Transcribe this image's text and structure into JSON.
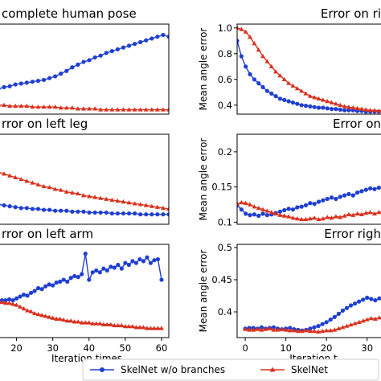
{
  "colors": {
    "wo_branches": "#1f3fd1",
    "skelnet": "#d9321f"
  },
  "legend": {
    "wo_branches_label": "SkelNet w/o branches",
    "skelnet_label": "SkelNet"
  },
  "chart_data": [
    {
      "type": "line",
      "title": "complete human pose",
      "xlim": [
        0,
        60
      ],
      "ylim": [
        0,
        1
      ],
      "xticks": [],
      "yticks": [],
      "series": [
        {
          "name": "SkelNet w/o branches",
          "x": [
            0,
            2,
            4,
            6,
            8,
            10,
            12,
            14,
            16,
            18,
            20,
            22,
            24,
            26,
            28,
            30,
            32,
            34,
            36,
            38,
            40,
            42,
            44,
            46,
            48,
            50,
            52,
            54,
            56,
            58,
            60
          ],
          "values": [
            0.28,
            0.3,
            0.31,
            0.33,
            0.34,
            0.35,
            0.36,
            0.37,
            0.38,
            0.4,
            0.42,
            0.45,
            0.48,
            0.52,
            0.55,
            0.58,
            0.6,
            0.63,
            0.65,
            0.68,
            0.7,
            0.72,
            0.74,
            0.76,
            0.78,
            0.8,
            0.82,
            0.84,
            0.86,
            0.88,
            0.86
          ]
        },
        {
          "name": "SkelNet",
          "x": [
            0,
            2,
            4,
            6,
            8,
            10,
            12,
            14,
            16,
            18,
            20,
            22,
            24,
            26,
            28,
            30,
            32,
            34,
            36,
            38,
            40,
            42,
            44,
            46,
            48,
            50,
            52,
            54,
            56,
            58,
            60
          ],
          "values": [
            0.1,
            0.1,
            0.09,
            0.09,
            0.09,
            0.09,
            0.08,
            0.08,
            0.08,
            0.08,
            0.08,
            0.07,
            0.07,
            0.07,
            0.06,
            0.06,
            0.06,
            0.06,
            0.05,
            0.05,
            0.05,
            0.05,
            0.05,
            0.05,
            0.05,
            0.05,
            0.05,
            0.05,
            0.05,
            0.05,
            0.05
          ]
        }
      ]
    },
    {
      "type": "line",
      "title": "Error on ri",
      "ylabel": "Mean angle error",
      "xlim": [
        0,
        35
      ],
      "ylim": [
        0.33,
        1.03
      ],
      "xticks": [],
      "yticks": [
        0.4,
        0.6,
        0.8,
        1.0
      ],
      "series": [
        {
          "name": "SkelNet w/o branches",
          "x": [
            0,
            1,
            2,
            3,
            4,
            5,
            6,
            7,
            8,
            9,
            10,
            11,
            12,
            13,
            14,
            15,
            16,
            17,
            18,
            19,
            20,
            21,
            22,
            23,
            24,
            25,
            26,
            27,
            28,
            29,
            30,
            31,
            32,
            33,
            34,
            35
          ],
          "values": [
            0.9,
            0.78,
            0.7,
            0.64,
            0.6,
            0.57,
            0.54,
            0.51,
            0.49,
            0.47,
            0.45,
            0.44,
            0.43,
            0.42,
            0.41,
            0.4,
            0.395,
            0.39,
            0.385,
            0.38,
            0.38,
            0.375,
            0.37,
            0.37,
            0.365,
            0.36,
            0.36,
            0.36,
            0.355,
            0.355,
            0.35,
            0.35,
            0.35,
            0.35,
            0.35,
            0.35
          ]
        },
        {
          "name": "SkelNet",
          "x": [
            0,
            1,
            2,
            3,
            4,
            5,
            6,
            7,
            8,
            9,
            10,
            11,
            12,
            13,
            14,
            15,
            16,
            17,
            18,
            19,
            20,
            21,
            22,
            23,
            24,
            25,
            26,
            27,
            28,
            29,
            30,
            31,
            32,
            33,
            34,
            35
          ],
          "values": [
            1.0,
            0.99,
            0.97,
            0.93,
            0.88,
            0.83,
            0.78,
            0.74,
            0.7,
            0.66,
            0.63,
            0.6,
            0.57,
            0.55,
            0.53,
            0.51,
            0.49,
            0.47,
            0.46,
            0.45,
            0.44,
            0.43,
            0.42,
            0.41,
            0.4,
            0.39,
            0.385,
            0.38,
            0.375,
            0.37,
            0.365,
            0.36,
            0.36,
            0.355,
            0.355,
            0.35
          ]
        }
      ]
    },
    {
      "type": "line",
      "title": "rror on left leg",
      "xlim": [
        0,
        60
      ],
      "ylim": [
        0,
        1
      ],
      "xticks": [],
      "yticks": [],
      "series": [
        {
          "name": "SkelNet w/o branches",
          "x": [
            0,
            2,
            4,
            6,
            8,
            10,
            12,
            14,
            16,
            18,
            20,
            22,
            24,
            26,
            28,
            30,
            32,
            34,
            36,
            38,
            40,
            42,
            44,
            46,
            48,
            50,
            52,
            54,
            56,
            58,
            60
          ],
          "values": [
            0.22,
            0.21,
            0.2,
            0.19,
            0.18,
            0.18,
            0.17,
            0.17,
            0.16,
            0.16,
            0.15,
            0.15,
            0.15,
            0.14,
            0.14,
            0.14,
            0.13,
            0.13,
            0.13,
            0.13,
            0.12,
            0.12,
            0.12,
            0.12,
            0.12,
            0.11,
            0.11,
            0.11,
            0.11,
            0.11,
            0.11
          ]
        },
        {
          "name": "SkelNet",
          "x": [
            0,
            2,
            4,
            6,
            8,
            10,
            12,
            14,
            16,
            18,
            20,
            22,
            24,
            26,
            28,
            30,
            32,
            34,
            36,
            38,
            40,
            42,
            44,
            46,
            48,
            50,
            52,
            54,
            56,
            58,
            60
          ],
          "values": [
            0.58,
            0.56,
            0.54,
            0.52,
            0.5,
            0.48,
            0.46,
            0.44,
            0.42,
            0.41,
            0.39,
            0.38,
            0.36,
            0.35,
            0.34,
            0.32,
            0.31,
            0.3,
            0.29,
            0.28,
            0.27,
            0.26,
            0.25,
            0.24,
            0.23,
            0.22,
            0.21,
            0.2,
            0.19,
            0.18,
            0.17
          ]
        }
      ]
    },
    {
      "type": "line",
      "title": "Error on",
      "ylabel": "Mean angle error",
      "xlim": [
        0,
        35
      ],
      "ylim": [
        0.097,
        0.225
      ],
      "xticks": [],
      "yticks": [
        0.1,
        0.15,
        0.2
      ],
      "series": [
        {
          "name": "SkelNet w/o branches",
          "x": [
            0,
            1,
            2,
            3,
            4,
            5,
            6,
            7,
            8,
            9,
            10,
            11,
            12,
            13,
            14,
            15,
            16,
            17,
            18,
            19,
            20,
            21,
            22,
            23,
            24,
            25,
            26,
            27,
            28,
            29,
            30,
            31,
            32,
            33,
            34,
            35
          ],
          "values": [
            0.124,
            0.118,
            0.112,
            0.11,
            0.111,
            0.109,
            0.112,
            0.11,
            0.111,
            0.113,
            0.115,
            0.117,
            0.119,
            0.118,
            0.121,
            0.122,
            0.124,
            0.127,
            0.126,
            0.129,
            0.131,
            0.133,
            0.135,
            0.133,
            0.136,
            0.138,
            0.14,
            0.138,
            0.142,
            0.144,
            0.146,
            0.148,
            0.147,
            0.149,
            0.148,
            0.149
          ]
        },
        {
          "name": "SkelNet",
          "x": [
            0,
            1,
            2,
            3,
            4,
            5,
            6,
            7,
            8,
            9,
            10,
            11,
            12,
            13,
            14,
            15,
            16,
            17,
            18,
            19,
            20,
            21,
            22,
            23,
            24,
            25,
            26,
            27,
            28,
            29,
            30,
            31,
            32,
            33,
            34,
            35
          ],
          "values": [
            0.126,
            0.128,
            0.127,
            0.125,
            0.122,
            0.12,
            0.118,
            0.116,
            0.114,
            0.112,
            0.11,
            0.109,
            0.108,
            0.106,
            0.105,
            0.104,
            0.104,
            0.105,
            0.106,
            0.104,
            0.105,
            0.107,
            0.106,
            0.108,
            0.107,
            0.109,
            0.111,
            0.11,
            0.112,
            0.111,
            0.113,
            0.114,
            0.112,
            0.114,
            0.115,
            0.114
          ]
        }
      ]
    },
    {
      "type": "line",
      "title": "rror on left arm",
      "xlabel": "Iteration times",
      "xlim": [
        15,
        62
      ],
      "ylim": [
        0,
        1
      ],
      "xticks": [
        20,
        30,
        40,
        50,
        60
      ],
      "yticks": [],
      "series": [
        {
          "name": "SkelNet w/o branches",
          "x": [
            15,
            16,
            17,
            18,
            19,
            20,
            21,
            22,
            23,
            24,
            25,
            26,
            27,
            28,
            29,
            30,
            31,
            32,
            33,
            34,
            35,
            36,
            37,
            38,
            39,
            40,
            41,
            42,
            43,
            44,
            45,
            46,
            47,
            48,
            49,
            50,
            51,
            52,
            53,
            54,
            55,
            56,
            57,
            58,
            59,
            60
          ],
          "values": [
            0.4,
            0.4,
            0.4,
            0.41,
            0.4,
            0.42,
            0.44,
            0.46,
            0.45,
            0.48,
            0.5,
            0.53,
            0.52,
            0.55,
            0.57,
            0.56,
            0.59,
            0.6,
            0.62,
            0.6,
            0.64,
            0.66,
            0.65,
            0.68,
            0.9,
            0.62,
            0.7,
            0.72,
            0.7,
            0.74,
            0.72,
            0.76,
            0.75,
            0.78,
            0.74,
            0.8,
            0.78,
            0.82,
            0.8,
            0.84,
            0.82,
            0.86,
            0.8,
            0.83,
            0.84,
            0.62
          ]
        },
        {
          "name": "SkelNet",
          "x": [
            15,
            16,
            17,
            18,
            19,
            20,
            21,
            22,
            23,
            24,
            25,
            26,
            27,
            28,
            29,
            30,
            31,
            32,
            33,
            34,
            35,
            36,
            37,
            38,
            39,
            40,
            41,
            42,
            43,
            44,
            45,
            46,
            47,
            48,
            49,
            50,
            51,
            52,
            53,
            54,
            55,
            56,
            57,
            58,
            59,
            60
          ],
          "values": [
            0.38,
            0.38,
            0.37,
            0.37,
            0.36,
            0.35,
            0.33,
            0.31,
            0.29,
            0.28,
            0.26,
            0.25,
            0.24,
            0.23,
            0.22,
            0.21,
            0.2,
            0.2,
            0.19,
            0.18,
            0.18,
            0.17,
            0.17,
            0.16,
            0.16,
            0.16,
            0.15,
            0.15,
            0.15,
            0.14,
            0.14,
            0.14,
            0.13,
            0.13,
            0.13,
            0.12,
            0.12,
            0.12,
            0.11,
            0.11,
            0.11,
            0.1,
            0.1,
            0.1,
            0.1,
            0.1
          ]
        }
      ]
    },
    {
      "type": "line",
      "title": "Error righ",
      "ylabel": "Mean angle error",
      "xlabel": "Iteration t",
      "xlim": [
        -2,
        35
      ],
      "ylim": [
        0.36,
        0.505
      ],
      "xticks": [
        0,
        10,
        20,
        30
      ],
      "yticks": [
        0.4,
        0.45,
        0.5
      ],
      "series": [
        {
          "name": "SkelNet w/o branches",
          "x": [
            0,
            1,
            2,
            3,
            4,
            5,
            6,
            7,
            8,
            9,
            10,
            11,
            12,
            13,
            14,
            15,
            16,
            17,
            18,
            19,
            20,
            21,
            22,
            23,
            24,
            25,
            26,
            27,
            28,
            29,
            30,
            31,
            32,
            33,
            34,
            35
          ],
          "values": [
            0.374,
            0.375,
            0.375,
            0.374,
            0.376,
            0.374,
            0.375,
            0.376,
            0.374,
            0.373,
            0.374,
            0.375,
            0.373,
            0.372,
            0.371,
            0.372,
            0.374,
            0.376,
            0.378,
            0.381,
            0.384,
            0.388,
            0.392,
            0.397,
            0.402,
            0.406,
            0.41,
            0.413,
            0.416,
            0.419,
            0.422,
            0.42,
            0.418,
            0.421,
            0.419,
            0.42
          ]
        },
        {
          "name": "SkelNet",
          "x": [
            0,
            1,
            2,
            3,
            4,
            5,
            6,
            7,
            8,
            9,
            10,
            11,
            12,
            13,
            14,
            15,
            16,
            17,
            18,
            19,
            20,
            21,
            22,
            23,
            24,
            25,
            26,
            27,
            28,
            29,
            30,
            31,
            32,
            33,
            34,
            35
          ],
          "values": [
            0.373,
            0.372,
            0.372,
            0.373,
            0.372,
            0.373,
            0.374,
            0.372,
            0.372,
            0.373,
            0.372,
            0.371,
            0.371,
            0.37,
            0.37,
            0.371,
            0.37,
            0.37,
            0.369,
            0.37,
            0.371,
            0.371,
            0.372,
            0.374,
            0.376,
            0.378,
            0.38,
            0.382,
            0.384,
            0.386,
            0.388,
            0.39,
            0.389,
            0.391,
            0.39,
            0.391
          ]
        }
      ]
    }
  ]
}
